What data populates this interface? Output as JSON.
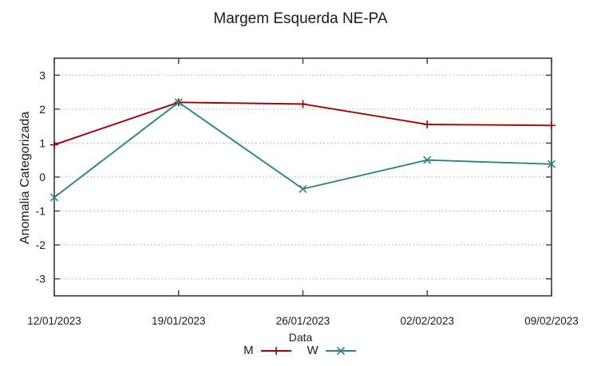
{
  "chart_data": {
    "type": "line",
    "title": "Margem Esquerda NE-PA",
    "xlabel": "Data",
    "ylabel": "Anomalia Categorizada",
    "categories": [
      "12/01/2023",
      "19/01/2023",
      "26/01/2023",
      "02/02/2023",
      "09/02/2023"
    ],
    "series": [
      {
        "name": "M",
        "color": "#a00000",
        "marker": "plus",
        "values": [
          0.95,
          2.2,
          2.15,
          1.55,
          1.52
        ]
      },
      {
        "name": "W",
        "color": "#2a8484",
        "marker": "x",
        "values": [
          -0.6,
          2.2,
          -0.35,
          0.5,
          0.38
        ]
      }
    ],
    "ylim": [
      -3.5,
      3.5
    ],
    "yticks": [
      -3,
      -2,
      -1,
      0,
      1,
      2,
      3
    ],
    "grid": "horizontal-dotted",
    "legend_position": "bottom-center",
    "border_color": "#3c3c3c",
    "grid_color": "#a8a8a8",
    "text_color": "#1a1a1a"
  }
}
